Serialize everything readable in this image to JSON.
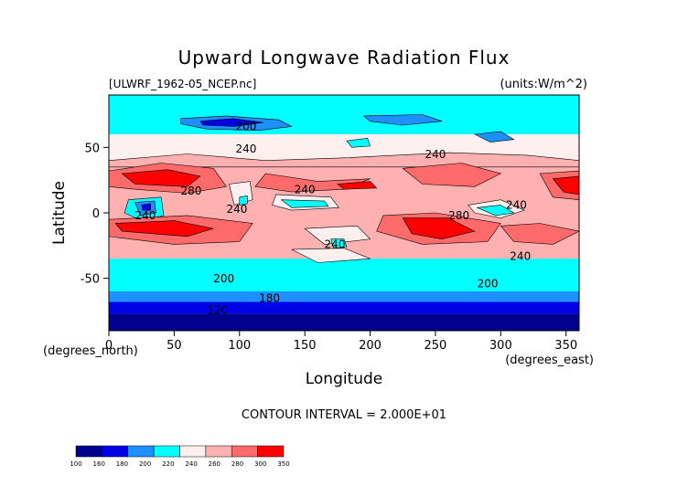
{
  "chart_data": {
    "type": "heatmap",
    "title": "Upward Longwave Radiation Flux",
    "subtitle_left": "[ULWRF_1962-05_NCEP.nc]",
    "subtitle_right": "(units:W/m^2)",
    "xlabel": "Longitude",
    "ylabel": "Latitude",
    "x_unit_label": "(degrees_east)",
    "y_unit_label": "(degrees_north)",
    "xlim": [
      0,
      360
    ],
    "ylim": [
      -90,
      90
    ],
    "x_ticks": [
      0,
      50,
      100,
      150,
      200,
      250,
      300,
      350
    ],
    "y_ticks": [
      -50,
      0,
      50
    ],
    "contour_interval_text": "CONTOUR INTERVAL = 2.000E+01",
    "contour_labels": [
      {
        "text": "200",
        "lon": 105,
        "lat": 63
      },
      {
        "text": "240",
        "lon": 105,
        "lat": 46
      },
      {
        "text": "280",
        "lon": 63,
        "lat": 14
      },
      {
        "text": "240",
        "lon": 150,
        "lat": 15
      },
      {
        "text": "240",
        "lon": 250,
        "lat": 42
      },
      {
        "text": "240",
        "lon": 28,
        "lat": -5
      },
      {
        "text": "240",
        "lon": 98,
        "lat": 0
      },
      {
        "text": "280",
        "lon": 268,
        "lat": -5
      },
      {
        "text": "240",
        "lon": 312,
        "lat": 3
      },
      {
        "text": "240",
        "lon": 173,
        "lat": -27
      },
      {
        "text": "240",
        "lon": 315,
        "lat": -36
      },
      {
        "text": "200",
        "lon": 88,
        "lat": -53
      },
      {
        "text": "200",
        "lon": 290,
        "lat": -57
      },
      {
        "text": "180",
        "lon": 123,
        "lat": -68
      },
      {
        "text": "120",
        "lon": 83,
        "lat": -77
      }
    ],
    "colorbar": {
      "levels": [
        "100",
        "160",
        "180",
        "200",
        "220",
        "240",
        "260",
        "280",
        "300",
        "350"
      ],
      "colors": [
        "#00008f",
        "#0000e6",
        "#1e90ff",
        "#00ffff",
        "#fff0f0",
        "#ffb0b0",
        "#ff6a6a",
        "#ff0000"
      ]
    },
    "band_colors": {
      "c100": "#00008f",
      "c160": "#0000e6",
      "c180": "#1e90ff",
      "c200": "#00ffff",
      "c220": "#fff0f0",
      "c240": "#ffb0b0",
      "c260": "#ff6a6a",
      "c280": "#ff0000"
    }
  }
}
